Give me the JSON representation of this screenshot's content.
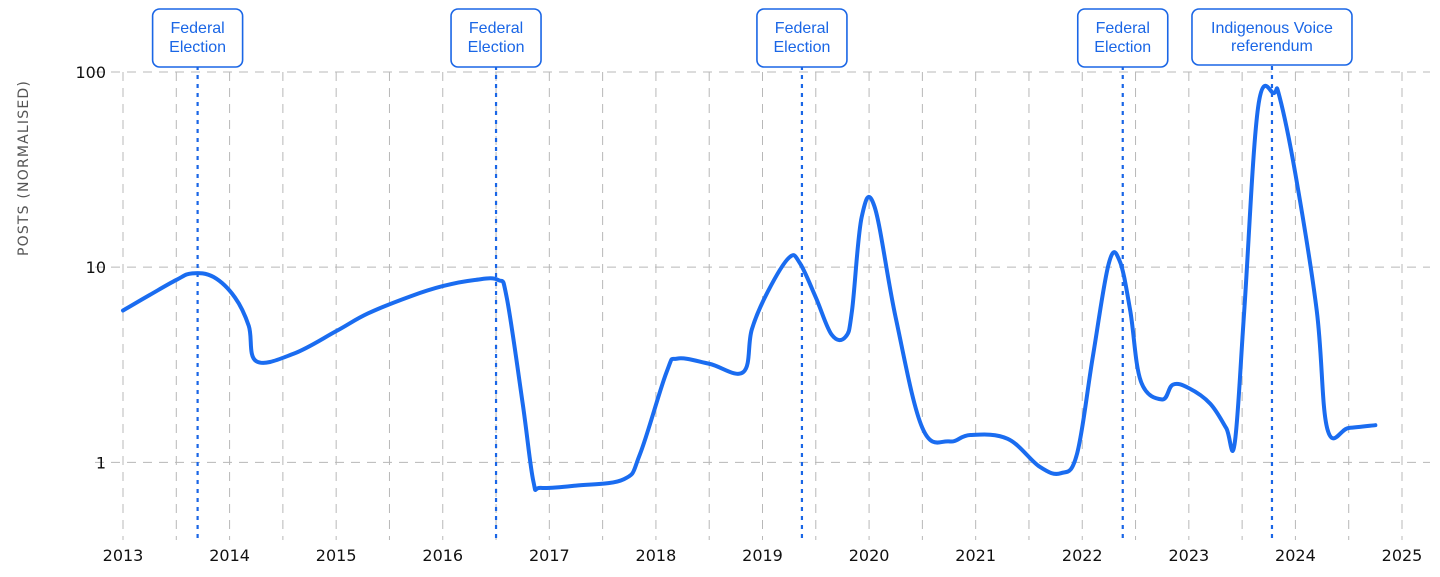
{
  "chart_data": {
    "type": "line",
    "title": "",
    "xlabel": "",
    "ylabel": "POSTS (NORMALISED)",
    "y_scale": "log",
    "ylim": [
      0.4,
      100
    ],
    "xlim": [
      2013,
      2025
    ],
    "x_ticks": [
      2013,
      2014,
      2015,
      2016,
      2017,
      2018,
      2019,
      2020,
      2021,
      2022,
      2023,
      2024,
      2025
    ],
    "y_ticks": [
      1,
      10,
      100
    ],
    "grid": true,
    "line_color": "#1a6cf0",
    "annotation_color": "#1a66e6",
    "series": [
      {
        "x": [
          2013.0,
          2013.25,
          2013.5,
          2013.65,
          2013.85,
          2014.05,
          2014.18,
          2014.25,
          2014.6,
          2015.0,
          2015.3,
          2015.7,
          2016.0,
          2016.3,
          2016.52,
          2016.6,
          2016.75,
          2016.85,
          2016.92,
          2017.25,
          2017.7,
          2017.85,
          2018.1,
          2018.2,
          2018.5,
          2018.82,
          2018.9,
          2019.05,
          2019.25,
          2019.35,
          2019.5,
          2019.65,
          2019.78,
          2019.84,
          2019.93,
          2020.05,
          2020.25,
          2020.5,
          2020.75,
          2020.95,
          2021.3,
          2021.6,
          2021.8,
          2021.95,
          2022.1,
          2022.25,
          2022.35,
          2022.45,
          2022.55,
          2022.75,
          2022.85,
          2023.0,
          2023.2,
          2023.35,
          2023.43,
          2023.52,
          2023.65,
          2023.8,
          2023.85,
          2024.0,
          2024.2,
          2024.3,
          2024.5,
          2024.75
        ],
        "y": [
          6.0,
          7.2,
          8.6,
          9.3,
          8.9,
          7.0,
          5.0,
          3.3,
          3.6,
          4.7,
          5.8,
          7.1,
          8.0,
          8.6,
          8.6,
          7.0,
          2.0,
          0.8,
          0.74,
          0.76,
          0.82,
          1.1,
          2.9,
          3.4,
          3.2,
          2.9,
          4.8,
          7.5,
          11.2,
          10.5,
          7.0,
          4.5,
          4.4,
          6.0,
          18.0,
          20.5,
          5.5,
          1.5,
          1.28,
          1.38,
          1.32,
          0.95,
          0.88,
          1.1,
          3.5,
          10.5,
          10.8,
          6.0,
          2.6,
          2.1,
          2.5,
          2.4,
          2.0,
          1.5,
          1.25,
          6.0,
          66.0,
          78.0,
          75.0,
          30.0,
          6.0,
          1.48,
          1.5,
          1.55
        ]
      }
    ],
    "annotations": [
      {
        "x": 2013.7,
        "label_lines": [
          "Federal",
          "Election"
        ]
      },
      {
        "x": 2016.5,
        "label_lines": [
          "Federal",
          "Election"
        ]
      },
      {
        "x": 2019.37,
        "label_lines": [
          "Federal",
          "Election"
        ]
      },
      {
        "x": 2022.38,
        "label_lines": [
          "Federal",
          "Election"
        ]
      },
      {
        "x": 2023.78,
        "label_lines": [
          "Indigenous Voice",
          "referendum"
        ]
      }
    ]
  }
}
